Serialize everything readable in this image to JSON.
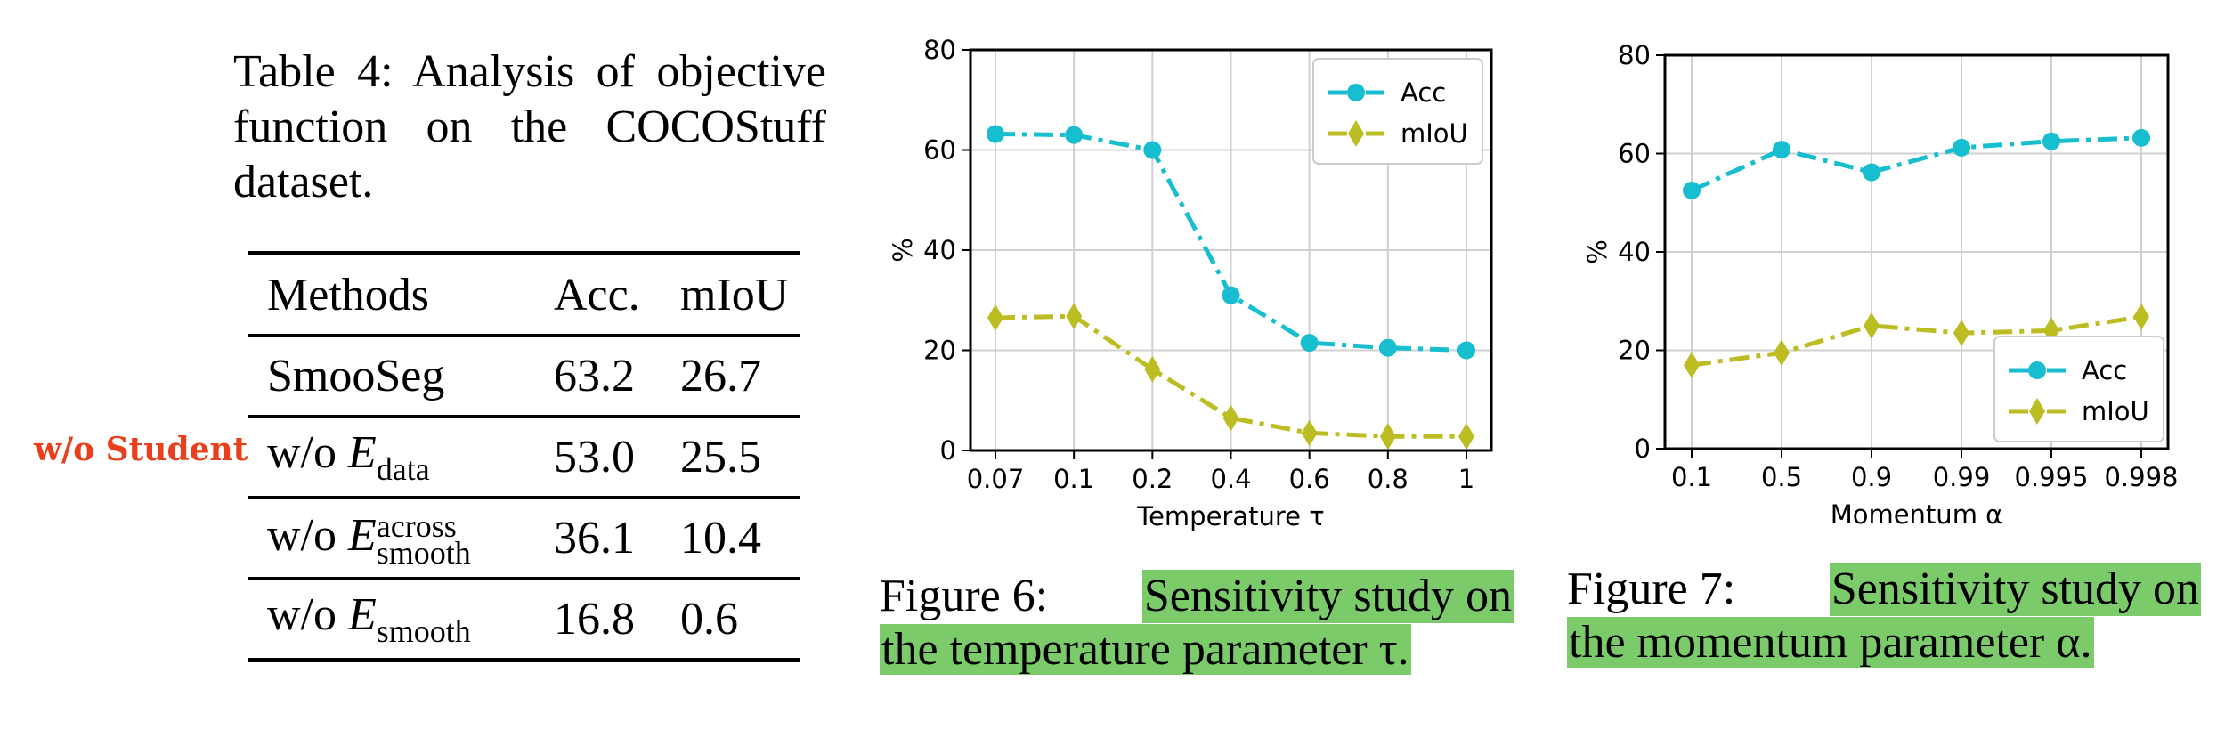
{
  "table": {
    "caption_lines": [
      "Table 4: Analysis of objective",
      "function on the COCOStuff",
      "dataset."
    ],
    "headers": [
      "Methods",
      "Acc.",
      "mIoU"
    ],
    "rows": [
      {
        "method_prefix": "SmooSeg",
        "symbol": "",
        "sub": "",
        "sup": "",
        "acc": "63.2",
        "miou": "26.7"
      },
      {
        "method_prefix": "w/o ",
        "symbol": "E",
        "sub": "data",
        "sup": "",
        "acc": "53.0",
        "miou": "25.5"
      },
      {
        "method_prefix": "w/o ",
        "symbol": "E",
        "sub": "smooth",
        "sup": "across",
        "acc": "36.1",
        "miou": "10.4"
      },
      {
        "method_prefix": "w/o ",
        "symbol": "E",
        "sub": "smooth",
        "sup": "",
        "acc": "16.8",
        "miou": "0.6"
      }
    ],
    "annotation": "w/o Student"
  },
  "figure6": {
    "caption_prefix": "Figure 6:",
    "caption_highlight_1": "Sensitivity study on",
    "caption_highlight_2": "the temperature parameter τ."
  },
  "figure7": {
    "caption_prefix": "Figure 7:",
    "caption_highlight_1": "Sensitivity study on",
    "caption_highlight_2": "the momentum parameter α."
  },
  "colors": {
    "acc": "#17becf",
    "miou": "#bcbd22",
    "highlight": "#7ccb6a",
    "annotation": "#e8401c"
  },
  "chart_data": [
    {
      "type": "line",
      "categories": [
        "0.07",
        "0.1",
        "0.2",
        "0.4",
        "0.6",
        "0.8",
        "1"
      ],
      "series": [
        {
          "name": "Acc",
          "values": [
            63.2,
            63.0,
            60.0,
            31.0,
            21.5,
            20.5,
            20.0
          ],
          "marker": "circle"
        },
        {
          "name": "mIoU",
          "values": [
            26.5,
            26.8,
            16.2,
            6.5,
            3.5,
            2.8,
            2.8
          ],
          "marker": "diamond"
        }
      ],
      "xlabel": "Temperature τ",
      "ylabel": "%",
      "ylim": [
        0,
        80
      ],
      "yticks": [
        "0",
        "20",
        "40",
        "60",
        "80"
      ],
      "grid": true,
      "legend": "top-right"
    },
    {
      "type": "line",
      "categories": [
        "0.1",
        "0.5",
        "0.9",
        "0.99",
        "0.995",
        "0.998"
      ],
      "series": [
        {
          "name": "Acc",
          "values": [
            52.5,
            60.8,
            56.2,
            61.2,
            62.5,
            63.2
          ],
          "marker": "circle"
        },
        {
          "name": "mIoU",
          "values": [
            17.0,
            19.5,
            25.0,
            23.5,
            24.0,
            26.8
          ],
          "marker": "diamond"
        }
      ],
      "xlabel": "Momentum α",
      "ylabel": "%",
      "ylim": [
        0,
        80
      ],
      "yticks": [
        "0",
        "20",
        "40",
        "60",
        "80"
      ],
      "grid": true,
      "legend": "bottom-right"
    }
  ]
}
